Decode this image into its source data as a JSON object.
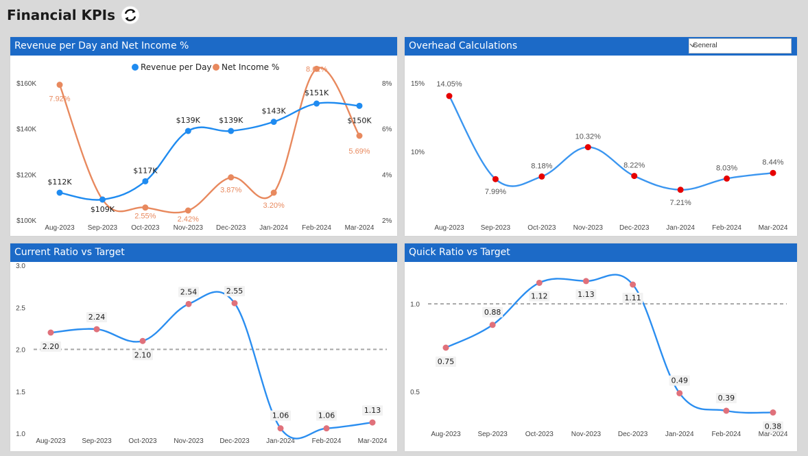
{
  "page": {
    "title": "Financial KPIs",
    "refresh_icon": "refresh-icon"
  },
  "panels": {
    "revenue": {
      "title": "Revenue per Day and Net Income %"
    },
    "overhead": {
      "title": "Overhead Calculations",
      "dropdown_value": "General",
      "dropdown_icon": "chevron-down-icon"
    },
    "current": {
      "title": "Current Ratio vs Target"
    },
    "quick": {
      "title": "Quick Ratio vs Target"
    }
  },
  "colors": {
    "header": "#1c6ac7",
    "revenue": "#1f8bf0",
    "net_income": "#e8895e",
    "overhead_line": "#3b96f0",
    "overhead_marker": "#e60000",
    "ratio_line": "#2b8ef0",
    "ratio_marker": "#e0717b",
    "target_line": "#a6a6a6"
  },
  "chart_data": [
    {
      "type": "line",
      "title": "Revenue per Day and Net Income %",
      "categories": [
        "Aug-2023",
        "Sep-2023",
        "Oct-2023",
        "Nov-2023",
        "Dec-2023",
        "Jan-2024",
        "Feb-2024",
        "Mar-2024"
      ],
      "legend_position": "top-center",
      "y_left": {
        "ticks": [
          "$100K",
          "$120K",
          "$140K",
          "$160K"
        ],
        "range": [
          100000,
          160000
        ]
      },
      "y_right": {
        "ticks": [
          "2%",
          "4%",
          "6%",
          "8%"
        ],
        "range": [
          2,
          8
        ]
      },
      "series": [
        {
          "name": "Revenue per Day",
          "axis": "left",
          "values": [
            112000,
            109000,
            117000,
            139000,
            139000,
            143000,
            151000,
            150000
          ],
          "labels": [
            "$112K",
            "$109K",
            "$117K",
            "$139K",
            "$139K",
            "$143K",
            "$151K",
            "$150K"
          ]
        },
        {
          "name": "Net Income %",
          "axis": "right",
          "values": [
            7.92,
            2.9,
            2.55,
            2.42,
            3.87,
            3.2,
            8.62,
            5.69
          ],
          "labels": [
            "7.92%",
            "",
            "2.55%",
            "2.42%",
            "3.87%",
            "3.20%",
            "8.62%",
            "5.69%"
          ]
        }
      ]
    },
    {
      "type": "line",
      "title": "Overhead Calculations",
      "categories": [
        "Aug-2023",
        "Sep-2023",
        "Oct-2023",
        "Nov-2023",
        "Dec-2023",
        "Jan-2024",
        "Feb-2024",
        "Mar-2024"
      ],
      "y": {
        "ticks": [
          "10%",
          "15%"
        ],
        "range": [
          5,
          16
        ]
      },
      "series": [
        {
          "values": [
            14.05,
            7.99,
            8.18,
            10.32,
            8.22,
            7.21,
            8.03,
            8.44
          ],
          "labels": [
            "14.05%",
            "7.99%",
            "8.18%",
            "10.32%",
            "8.22%",
            "7.21%",
            "8.03%",
            "8.44%"
          ]
        }
      ]
    },
    {
      "type": "line",
      "title": "Current Ratio vs Target",
      "categories": [
        "Aug-2023",
        "Sep-2023",
        "Oct-2023",
        "Nov-2023",
        "Dec-2023",
        "Jan-2024",
        "Feb-2024",
        "Mar-2024"
      ],
      "y": {
        "ticks": [
          "1.0",
          "1.5",
          "2.0",
          "2.5",
          "3.0"
        ],
        "range": [
          1.0,
          3.0
        ]
      },
      "target": 2.0,
      "series": [
        {
          "values": [
            2.2,
            2.24,
            2.1,
            2.54,
            2.55,
            1.06,
            1.06,
            1.13
          ],
          "labels": [
            "2.20",
            "2.24",
            "2.10",
            "2.54",
            "2.55",
            "1.06",
            "1.06",
            "1.13"
          ]
        }
      ]
    },
    {
      "type": "line",
      "title": "Quick Ratio vs Target",
      "categories": [
        "Aug-2023",
        "Sep-2023",
        "Oct-2023",
        "Nov-2023",
        "Dec-2023",
        "Jan-2024",
        "Feb-2024",
        "Mar-2024"
      ],
      "y": {
        "ticks": [
          "0.5",
          "1.0"
        ],
        "range": [
          0.3,
          1.2
        ]
      },
      "target": 1.0,
      "series": [
        {
          "values": [
            0.75,
            0.88,
            1.12,
            1.13,
            1.11,
            0.49,
            0.39,
            0.38
          ],
          "labels": [
            "0.75",
            "0.88",
            "1.12",
            "1.13",
            "1.11",
            "0.49",
            "0.39",
            "0.38"
          ]
        }
      ]
    }
  ]
}
